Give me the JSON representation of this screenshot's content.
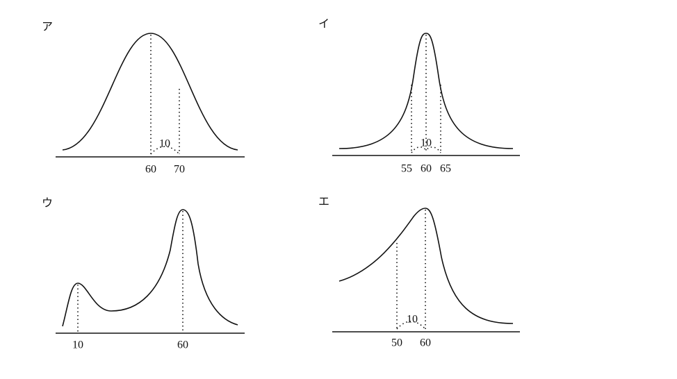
{
  "panels": [
    {
      "label": "ア",
      "ticks": [
        "60",
        "70"
      ],
      "gap": "10"
    },
    {
      "label": "イ",
      "ticks": [
        "55",
        "60",
        "65"
      ],
      "gap": "10"
    },
    {
      "label": "ウ",
      "ticks": [
        "10",
        "60"
      ]
    },
    {
      "label": "エ",
      "ticks": [
        "50",
        "60"
      ],
      "gap": "10"
    }
  ]
}
